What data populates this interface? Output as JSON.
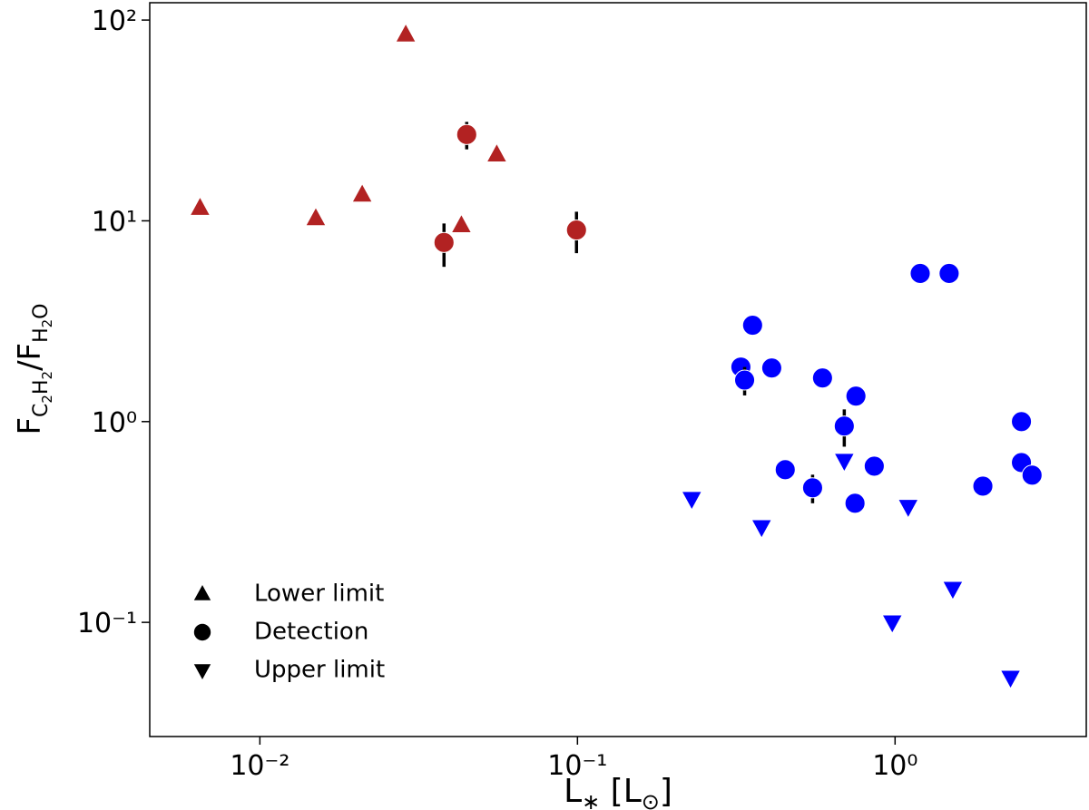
{
  "chart_data": {
    "type": "scatter",
    "xlabel": [
      "L",
      "∗",
      " [L",
      "⊙",
      "]"
    ],
    "ylabel": [
      "F",
      "C",
      "2",
      "H",
      "2",
      "/F",
      "H",
      "2",
      "O"
    ],
    "xscale": "log",
    "yscale": "log",
    "xlim": [
      0.0045,
      4.0
    ],
    "ylim": [
      0.027,
      122
    ],
    "xticks": [
      {
        "value": 0.01,
        "label": "10⁻²"
      },
      {
        "value": 0.1,
        "label": "10⁻¹"
      },
      {
        "value": 1,
        "label": "10⁰"
      }
    ],
    "yticks": [
      {
        "value": 0.1,
        "label": "10⁻¹"
      },
      {
        "value": 1,
        "label": "10⁰"
      },
      {
        "value": 10,
        "label": "10¹"
      },
      {
        "value": 100,
        "label": "10²"
      }
    ],
    "legend_position": "lower left",
    "legend": [
      {
        "label": "Lower limit",
        "marker": "^"
      },
      {
        "label": "Detection",
        "marker": "o"
      },
      {
        "label": "Upper limit",
        "marker": "v"
      }
    ],
    "series": [
      {
        "marker": "^",
        "color": "#b22222",
        "x": [
          0.00648,
          0.015,
          0.021,
          0.0288,
          0.0431,
          0.0557
        ],
        "values": [
          11.6,
          10.3,
          13.5,
          84.7,
          9.5,
          21.4
        ]
      },
      {
        "marker": "o",
        "color": "#b22222",
        "x": [
          0.038,
          0.0448,
          0.0993
        ],
        "values": [
          7.8,
          26.9,
          9.0
        ],
        "yerr": [
          1.9,
          4.2,
          2.1
        ]
      },
      {
        "marker": "o",
        "color": "#0000ff",
        "x": [
          1.2,
          1.48,
          0.356,
          0.327,
          0.409,
          0.336,
          0.591,
          0.753,
          0.692,
          2.5,
          2.5,
          2.7,
          1.89,
          0.86,
          0.451,
          0.55,
          0.748
        ],
        "values": [
          5.47,
          5.47,
          3.02,
          1.87,
          1.85,
          1.61,
          1.65,
          1.34,
          0.95,
          1.0,
          0.625,
          0.541,
          0.477,
          0.6,
          0.576,
          0.468,
          0.392
        ],
        "yerr": [
          null,
          null,
          null,
          null,
          null,
          0.26,
          null,
          null,
          0.2,
          null,
          null,
          null,
          null,
          null,
          null,
          0.076,
          null
        ]
      },
      {
        "marker": "v",
        "color": "#0000ff",
        "x": [
          0.229,
          0.38,
          0.692,
          1.1,
          0.98,
          1.52,
          2.31
        ],
        "values": [
          0.412,
          0.298,
          0.638,
          0.376,
          0.1,
          0.147,
          0.053
        ]
      }
    ]
  }
}
